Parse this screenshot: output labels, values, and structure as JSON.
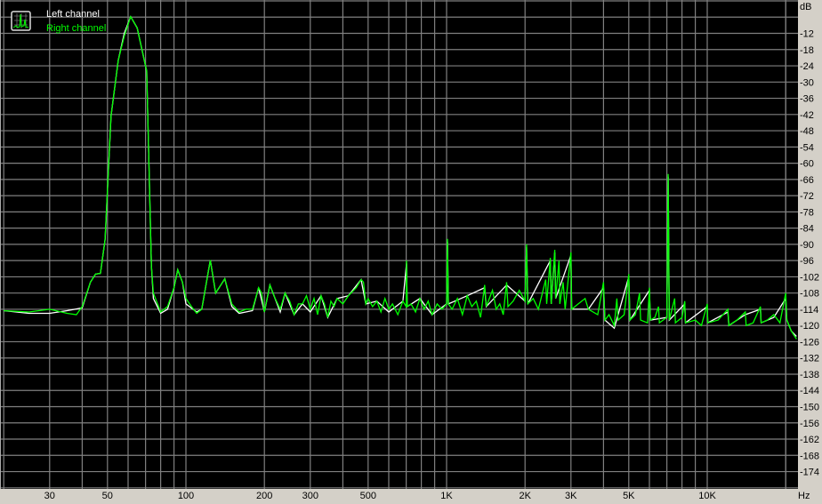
{
  "chart_data": {
    "type": "line",
    "title": "",
    "xlabel": "Hz",
    "ylabel": "dB",
    "x_scale": "log",
    "xlim": [
      20,
      22050
    ],
    "ylim": [
      -180,
      0
    ],
    "grid": true,
    "legend_placement": "top-left",
    "x_tick_labels": [
      {
        "f": 30,
        "label": "30"
      },
      {
        "f": 50,
        "label": "50"
      },
      {
        "f": 100,
        "label": "100"
      },
      {
        "f": 200,
        "label": "200"
      },
      {
        "f": 300,
        "label": "300"
      },
      {
        "f": 500,
        "label": "500"
      },
      {
        "f": 1000,
        "label": "1K"
      },
      {
        "f": 2000,
        "label": "2K"
      },
      {
        "f": 3000,
        "label": "3K"
      },
      {
        "f": 5000,
        "label": "5K"
      },
      {
        "f": 10000,
        "label": "10K"
      }
    ],
    "y_tick_labels": [
      -12,
      -18,
      -24,
      -30,
      -36,
      -42,
      -48,
      -54,
      -60,
      -66,
      -72,
      -78,
      -84,
      -90,
      -96,
      -102,
      -108,
      -114,
      -120,
      -126,
      -132,
      -138,
      -144,
      -150,
      -156,
      -162,
      -168,
      -174
    ],
    "colors": {
      "background": "#000000",
      "grid": "#808080",
      "left": "#ffffff",
      "right": "#00ff00",
      "panel": "#d4d0c8"
    },
    "series": [
      {
        "name": "Left channel",
        "points": [
          [
            20,
            -114.5
          ],
          [
            25,
            -115.5
          ],
          [
            30,
            -115.5
          ],
          [
            35,
            -114.5
          ],
          [
            40,
            -113.5
          ],
          [
            43,
            -104
          ],
          [
            45,
            -101
          ],
          [
            47,
            -100.7
          ],
          [
            49,
            -88
          ],
          [
            51.6,
            -42.6
          ],
          [
            55,
            -22
          ],
          [
            58,
            -12
          ],
          [
            61.4,
            -5.8
          ],
          [
            65,
            -10
          ],
          [
            70.7,
            -26
          ],
          [
            73.7,
            -98
          ],
          [
            75,
            -110
          ],
          [
            80,
            -115.5
          ],
          [
            85,
            -114
          ],
          [
            90,
            -106
          ],
          [
            93,
            -99.4
          ],
          [
            97,
            -104
          ],
          [
            100,
            -112
          ],
          [
            110,
            -115
          ],
          [
            115,
            -114
          ],
          [
            124,
            -95.8
          ],
          [
            130,
            -108
          ],
          [
            141,
            -102.7
          ],
          [
            150,
            -113
          ],
          [
            160,
            -115.5
          ],
          [
            180,
            -114.5
          ],
          [
            190,
            -106
          ],
          [
            200,
            -115
          ],
          [
            210,
            -105
          ],
          [
            230,
            -115
          ],
          [
            240,
            -108
          ],
          [
            260,
            -116
          ],
          [
            280,
            -112
          ],
          [
            300,
            -115
          ],
          [
            330,
            -109
          ],
          [
            350,
            -117
          ],
          [
            380,
            -110
          ],
          [
            420,
            -109
          ],
          [
            470,
            -103
          ],
          [
            490,
            -112
          ],
          [
            540,
            -111
          ],
          [
            600,
            -115
          ],
          [
            680,
            -111
          ],
          [
            702,
            -97
          ],
          [
            706,
            -113
          ],
          [
            790,
            -110
          ],
          [
            880,
            -116
          ],
          [
            1000,
            -112
          ],
          [
            1008,
            -89
          ],
          [
            1016,
            -112
          ],
          [
            1200,
            -109
          ],
          [
            1400,
            -106
          ],
          [
            1420,
            -113
          ],
          [
            1700,
            -105
          ],
          [
            2000,
            -111
          ],
          [
            2027,
            -91
          ],
          [
            2050,
            -112
          ],
          [
            2500,
            -96
          ],
          [
            2520,
            -112
          ],
          [
            2600,
            -93
          ],
          [
            2620,
            -110
          ],
          [
            3000,
            -94
          ],
          [
            3020,
            -114
          ],
          [
            3500,
            -114
          ],
          [
            4000,
            -106
          ],
          [
            4050,
            -118
          ],
          [
            4400,
            -121
          ],
          [
            5000,
            -102
          ],
          [
            5050,
            -118
          ],
          [
            6000,
            -107
          ],
          [
            6050,
            -118
          ],
          [
            7000,
            -117
          ],
          [
            7080,
            -65
          ],
          [
            7150,
            -118
          ],
          [
            8200,
            -112
          ],
          [
            8250,
            -119
          ],
          [
            10000,
            -113
          ],
          [
            10050,
            -119
          ],
          [
            12000,
            -115
          ],
          [
            12100,
            -120
          ],
          [
            14000,
            -116
          ],
          [
            16000,
            -114
          ],
          [
            16100,
            -119
          ],
          [
            18000,
            -117
          ],
          [
            20000,
            -110
          ],
          [
            20200,
            -118
          ],
          [
            21000,
            -122
          ],
          [
            22000,
            -124
          ]
        ]
      },
      {
        "name": "Right channel",
        "points": [
          [
            20,
            -114.5
          ],
          [
            25,
            -115
          ],
          [
            30,
            -114
          ],
          [
            35,
            -115.5
          ],
          [
            38,
            -116
          ],
          [
            40,
            -113
          ],
          [
            43,
            -104
          ],
          [
            45,
            -101
          ],
          [
            47,
            -100.7
          ],
          [
            48.9,
            -88.6
          ],
          [
            51.6,
            -42.6
          ],
          [
            55,
            -22
          ],
          [
            58,
            -13
          ],
          [
            61.4,
            -5.8
          ],
          [
            65,
            -10
          ],
          [
            70.7,
            -26
          ],
          [
            73.7,
            -98
          ],
          [
            75,
            -108
          ],
          [
            80,
            -115
          ],
          [
            85,
            -113
          ],
          [
            90,
            -106
          ],
          [
            93,
            -99.4
          ],
          [
            97,
            -104
          ],
          [
            100,
            -110
          ],
          [
            105,
            -113
          ],
          [
            110,
            -115.5
          ],
          [
            115,
            -114
          ],
          [
            124,
            -95.8
          ],
          [
            130,
            -108
          ],
          [
            141,
            -102.7
          ],
          [
            150,
            -112
          ],
          [
            160,
            -115
          ],
          [
            170,
            -114
          ],
          [
            180,
            -114
          ],
          [
            190,
            -106
          ],
          [
            195,
            -108
          ],
          [
            200,
            -115
          ],
          [
            210,
            -105
          ],
          [
            220,
            -110
          ],
          [
            230,
            -114
          ],
          [
            240,
            -108
          ],
          [
            250,
            -111
          ],
          [
            260,
            -116
          ],
          [
            270,
            -112
          ],
          [
            280,
            -112
          ],
          [
            290,
            -109
          ],
          [
            300,
            -114
          ],
          [
            310,
            -110
          ],
          [
            320,
            -116
          ],
          [
            330,
            -109
          ],
          [
            340,
            -112
          ],
          [
            350,
            -117
          ],
          [
            360,
            -111
          ],
          [
            370,
            -113
          ],
          [
            380,
            -110
          ],
          [
            400,
            -112
          ],
          [
            420,
            -109
          ],
          [
            450,
            -106
          ],
          [
            470,
            -103
          ],
          [
            480,
            -104
          ],
          [
            490,
            -112
          ],
          [
            500,
            -110
          ],
          [
            520,
            -113
          ],
          [
            540,
            -111
          ],
          [
            560,
            -115
          ],
          [
            580,
            -110
          ],
          [
            600,
            -114
          ],
          [
            620,
            -112
          ],
          [
            650,
            -116
          ],
          [
            680,
            -111
          ],
          [
            700,
            -113
          ],
          [
            702,
            -96
          ],
          [
            706,
            -113
          ],
          [
            730,
            -112
          ],
          [
            760,
            -115
          ],
          [
            790,
            -110
          ],
          [
            820,
            -114
          ],
          [
            850,
            -111
          ],
          [
            880,
            -116
          ],
          [
            920,
            -112
          ],
          [
            960,
            -114
          ],
          [
            1000,
            -112
          ],
          [
            1008,
            -88
          ],
          [
            1016,
            -112
          ],
          [
            1050,
            -114
          ],
          [
            1100,
            -110
          ],
          [
            1150,
            -116
          ],
          [
            1200,
            -109
          ],
          [
            1250,
            -113
          ],
          [
            1300,
            -111
          ],
          [
            1350,
            -117
          ],
          [
            1400,
            -105
          ],
          [
            1420,
            -113
          ],
          [
            1500,
            -107
          ],
          [
            1550,
            -114
          ],
          [
            1600,
            -112
          ],
          [
            1650,
            -116
          ],
          [
            1700,
            -104
          ],
          [
            1720,
            -113
          ],
          [
            1800,
            -111
          ],
          [
            1900,
            -107
          ],
          [
            2000,
            -111
          ],
          [
            2027,
            -90
          ],
          [
            2050,
            -112
          ],
          [
            2150,
            -110
          ],
          [
            2250,
            -114
          ],
          [
            2400,
            -103
          ],
          [
            2420,
            -112
          ],
          [
            2500,
            -95
          ],
          [
            2520,
            -112
          ],
          [
            2600,
            -92
          ],
          [
            2620,
            -110
          ],
          [
            2700,
            -96
          ],
          [
            2720,
            -112
          ],
          [
            2800,
            -104
          ],
          [
            2850,
            -114
          ],
          [
            3000,
            -93
          ],
          [
            3020,
            -114
          ],
          [
            3200,
            -112
          ],
          [
            3400,
            -110
          ],
          [
            3500,
            -114
          ],
          [
            3800,
            -116
          ],
          [
            4000,
            -104
          ],
          [
            4050,
            -118
          ],
          [
            4200,
            -116
          ],
          [
            4400,
            -120
          ],
          [
            4500,
            -110
          ],
          [
            4550,
            -118
          ],
          [
            4800,
            -116
          ],
          [
            5000,
            -101
          ],
          [
            5050,
            -118
          ],
          [
            5300,
            -116
          ],
          [
            5500,
            -108
          ],
          [
            5550,
            -118
          ],
          [
            5900,
            -119
          ],
          [
            6000,
            -106
          ],
          [
            6050,
            -118
          ],
          [
            6300,
            -117
          ],
          [
            6500,
            -113
          ],
          [
            6550,
            -119
          ],
          [
            7000,
            -117
          ],
          [
            7080,
            -64
          ],
          [
            7150,
            -118
          ],
          [
            7500,
            -110
          ],
          [
            7550,
            -119
          ],
          [
            8000,
            -117
          ],
          [
            8200,
            -111
          ],
          [
            8250,
            -119
          ],
          [
            9000,
            -118
          ],
          [
            9500,
            -120
          ],
          [
            10000,
            -112
          ],
          [
            10050,
            -119
          ],
          [
            11000,
            -118
          ],
          [
            12000,
            -114
          ],
          [
            12100,
            -120
          ],
          [
            13000,
            -118
          ],
          [
            14000,
            -115
          ],
          [
            14100,
            -120
          ],
          [
            15000,
            -119
          ],
          [
            16000,
            -113
          ],
          [
            16100,
            -119
          ],
          [
            17000,
            -118
          ],
          [
            18000,
            -116
          ],
          [
            19000,
            -119
          ],
          [
            20000,
            -108
          ],
          [
            20200,
            -118
          ],
          [
            21000,
            -122
          ],
          [
            22000,
            -125
          ]
        ]
      }
    ]
  }
}
